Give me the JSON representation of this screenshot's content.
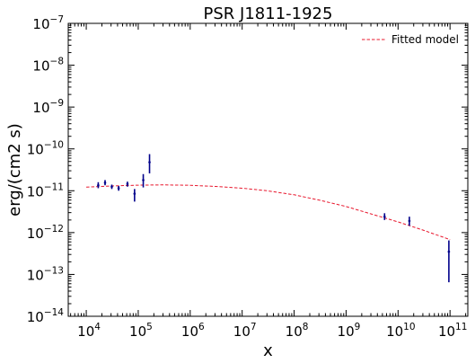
{
  "chart_data": {
    "type": "scatter",
    "title": "PSR J1811-1925",
    "xlabel": "x",
    "ylabel": "erg/(cm2 s)",
    "xscale": "log",
    "yscale": "log",
    "xlim": [
      4500.0,
      220000000000.0
    ],
    "ylim": [
      1e-14,
      1e-07
    ],
    "x_ticks": [
      {
        "base": "10",
        "exp": "4",
        "value": 10000.0
      },
      {
        "base": "10",
        "exp": "5",
        "value": 100000.0
      },
      {
        "base": "10",
        "exp": "6",
        "value": 1000000.0
      },
      {
        "base": "10",
        "exp": "7",
        "value": 10000000.0
      },
      {
        "base": "10",
        "exp": "8",
        "value": 100000000.0
      },
      {
        "base": "10",
        "exp": "9",
        "value": 1000000000.0
      },
      {
        "base": "10",
        "exp": "10",
        "value": 10000000000.0
      },
      {
        "base": "10",
        "exp": "11",
        "value": 100000000000.0
      }
    ],
    "y_ticks": [
      {
        "base": "10",
        "exp": "−14",
        "value": 1e-14
      },
      {
        "base": "10",
        "exp": "−13",
        "value": 1e-13
      },
      {
        "base": "10",
        "exp": "−12",
        "value": 1e-12
      },
      {
        "base": "10",
        "exp": "−11",
        "value": 1e-11
      },
      {
        "base": "10",
        "exp": "−10",
        "value": 1e-10
      },
      {
        "base": "10",
        "exp": "−9",
        "value": 1e-09
      },
      {
        "base": "10",
        "exp": "−8",
        "value": 1e-08
      },
      {
        "base": "10",
        "exp": "−7",
        "value": 1e-07
      }
    ],
    "legend": {
      "placement": "top-right",
      "entries": [
        "Fitted model"
      ]
    },
    "grid": false,
    "colors": {
      "data": "#00008b",
      "model": "#e8182e"
    },
    "series": [
      {
        "kind": "errorbar",
        "points": [
          {
            "x": 17000.0,
            "y": 1.35e-11,
            "ylo": 1.15e-11,
            "yhi": 1.6e-11
          },
          {
            "x": 23000.0,
            "y": 1.55e-11,
            "ylo": 1.35e-11,
            "yhi": 1.8e-11
          },
          {
            "x": 31000.0,
            "y": 1.25e-11,
            "ylo": 1.1e-11,
            "yhi": 1.4e-11
          },
          {
            "x": 42000.0,
            "y": 1.15e-11,
            "ylo": 1e-11,
            "yhi": 1.3e-11
          },
          {
            "x": 62000.0,
            "y": 1.45e-11,
            "ylo": 1.25e-11,
            "yhi": 1.65e-11
          },
          {
            "x": 85000.0,
            "y": 8.5e-12,
            "ylo": 5.5e-12,
            "yhi": 1.1e-11
          },
          {
            "x": 125000.0,
            "y": 1.8e-11,
            "ylo": 1.2e-11,
            "yhi": 2.5e-11
          },
          {
            "x": 165000.0,
            "y": 4.8e-11,
            "ylo": 2.6e-11,
            "yhi": 7.5e-11
          },
          {
            "x": 5500000000.0,
            "y": 2.4e-12,
            "ylo": 2e-12,
            "yhi": 2.9e-12
          },
          {
            "x": 16500000000.0,
            "y": 1.9e-12,
            "ylo": 1.45e-12,
            "yhi": 2.4e-12
          },
          {
            "x": 95000000000.0,
            "y": 3.5e-13,
            "ylo": 6.5e-14,
            "yhi": 6.5e-13
          }
        ]
      },
      {
        "name": "Fitted model",
        "kind": "line",
        "style": "dashed",
        "x": [
          10000.0,
          30000.0,
          100000.0,
          300000.0,
          1000000.0,
          3000000.0,
          10000000.0,
          30000000.0,
          100000000.0,
          300000000.0,
          1000000000.0,
          3000000000.0,
          10000000000.0,
          30000000000.0,
          100000000000.0
        ],
        "y": [
          1.22e-11,
          1.3e-11,
          1.36e-11,
          1.38e-11,
          1.35e-11,
          1.27e-11,
          1.15e-11,
          1e-11,
          8e-12,
          6e-12,
          4.2e-12,
          2.8e-12,
          1.8e-12,
          1.15e-12,
          6.8e-13
        ]
      }
    ]
  }
}
